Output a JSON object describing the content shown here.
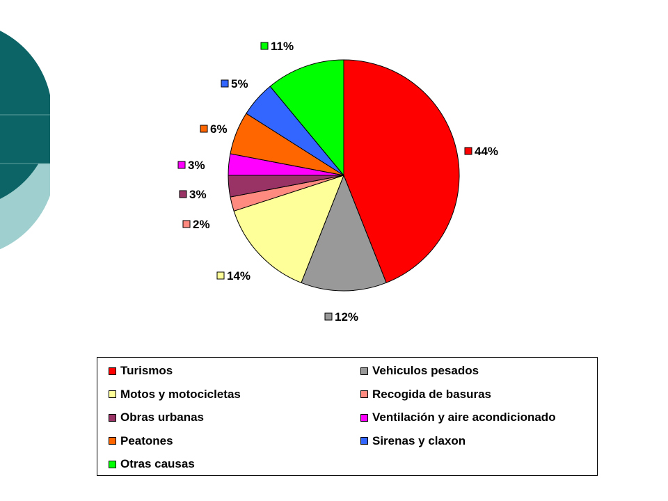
{
  "chart_data": {
    "type": "pie",
    "slices": [
      {
        "name": "Turismos",
        "value": 44,
        "label": "44%",
        "color": "#ff0000"
      },
      {
        "name": "Vehiculos pesados",
        "value": 12,
        "label": "12%",
        "color": "#999999"
      },
      {
        "name": "Motos y motocicletas",
        "value": 14,
        "label": "14%",
        "color": "#ffff99"
      },
      {
        "name": "Recogida de basuras",
        "value": 2,
        "label": "2%",
        "color": "#ff8a80"
      },
      {
        "name": "Obras urbanas",
        "value": 3,
        "label": "3%",
        "color": "#993366"
      },
      {
        "name": "Ventilación y aire acondicionado",
        "value": 3,
        "label": "3%",
        "color": "#ff00ff"
      },
      {
        "name": "Peatones",
        "value": 6,
        "label": "6%",
        "color": "#ff6600"
      },
      {
        "name": "Sirenas y claxon",
        "value": 5,
        "label": "5%",
        "color": "#3366ff"
      },
      {
        "name": "Otras causas",
        "value": 11,
        "label": "11%",
        "color": "#00ff00"
      }
    ],
    "legend": [
      "Turismos",
      "Vehiculos pesados",
      "Motos y motocicletas",
      "Recogida de basuras",
      "Obras urbanas",
      "Ventilación y aire acondicionado",
      "Peatones",
      "Sirenas y claxon",
      "Otras causas"
    ],
    "legend_position": "bottom"
  },
  "theme": {
    "decor_dark": "#0d6466",
    "decor_light": "#9fcfcf"
  }
}
